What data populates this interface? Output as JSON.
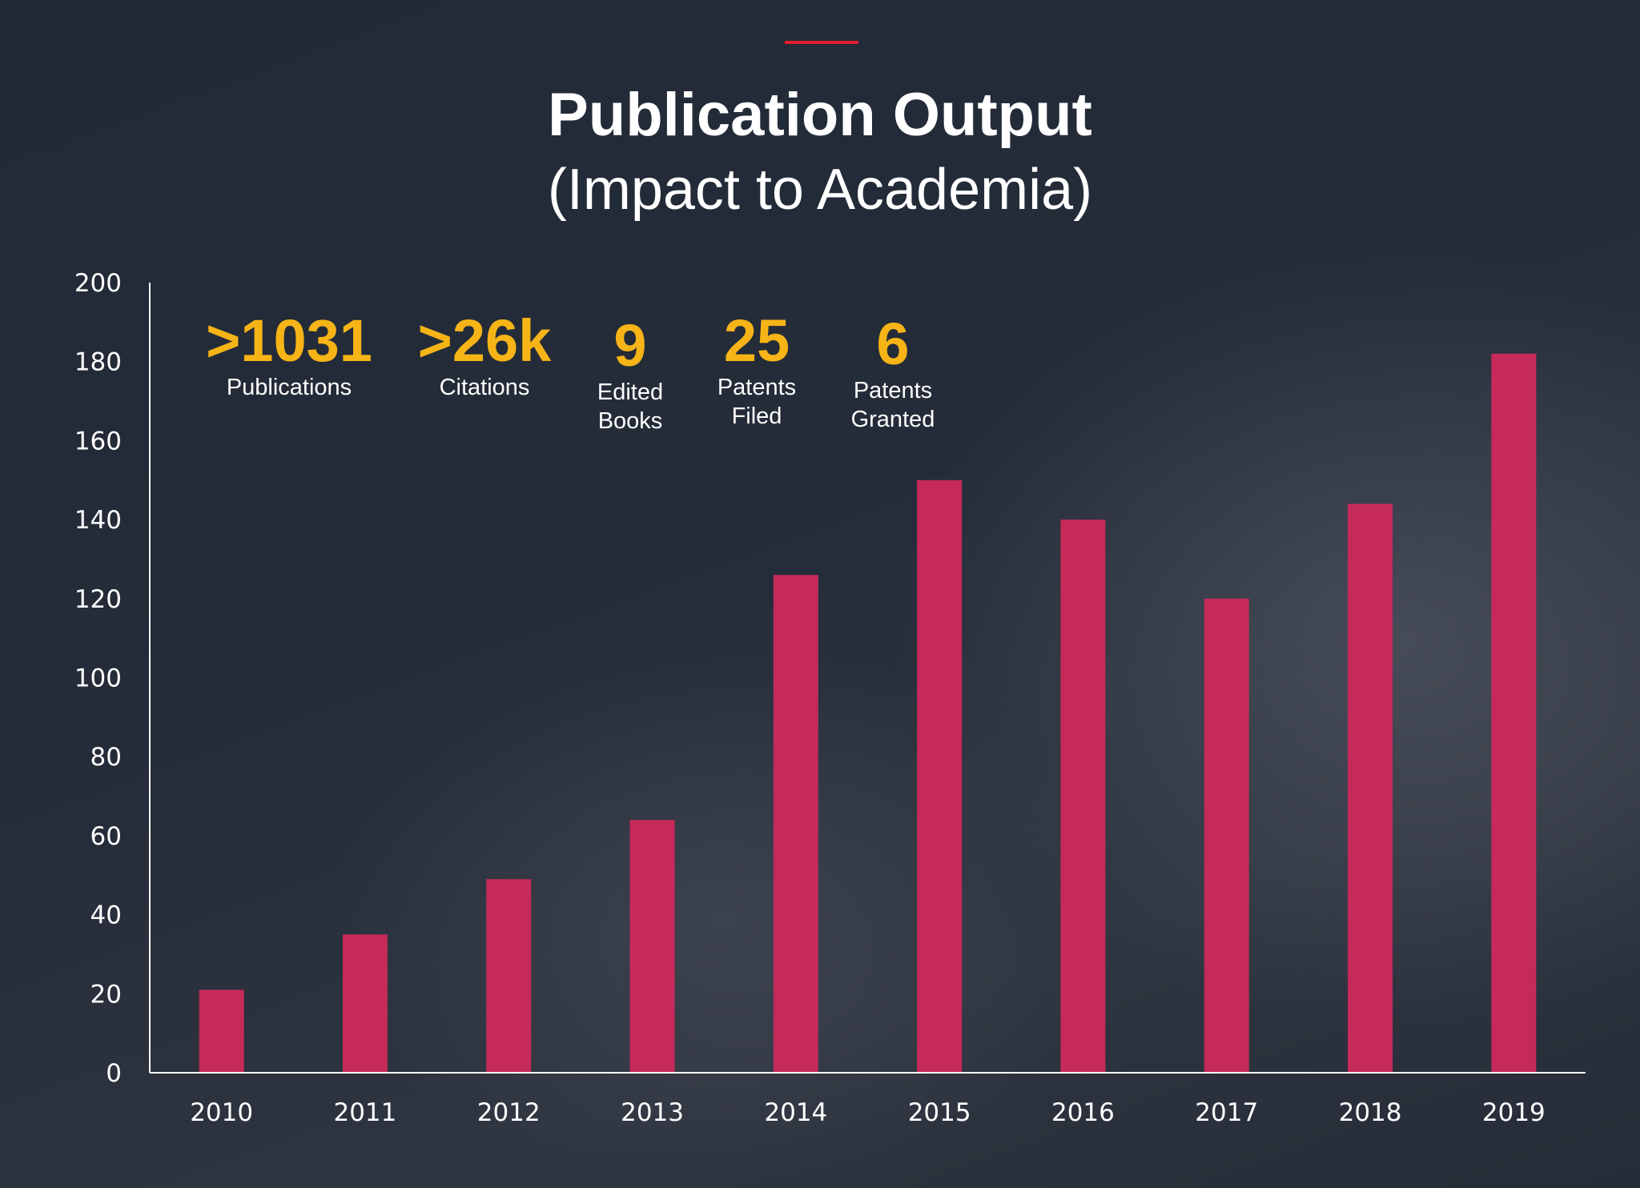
{
  "header": {
    "title": "Publication Output",
    "subtitle": "(Impact to Academia)"
  },
  "stats": [
    {
      "value": ">1031",
      "label": "Publications"
    },
    {
      "value": ">26k",
      "label": "Citations"
    },
    {
      "value": "9",
      "label": "Edited\nBooks"
    },
    {
      "value": "25",
      "label": "Patents\nFiled"
    },
    {
      "value": "6",
      "label": "Patents\nGranted"
    }
  ],
  "colors": {
    "bar": "#c52a5a",
    "accent": "#e01e2b",
    "stat_value": "#f6b417",
    "axis": "#ffffff"
  },
  "chart_data": {
    "type": "bar",
    "title": "Publication Output",
    "subtitle": "(Impact to Academia)",
    "categories": [
      "2010",
      "2011",
      "2012",
      "2013",
      "2014",
      "2015",
      "2016",
      "2017",
      "2018",
      "2019"
    ],
    "values": [
      21,
      35,
      49,
      64,
      126,
      150,
      140,
      120,
      144,
      182
    ],
    "ylim": [
      0,
      200
    ],
    "yticks": [
      0,
      20,
      40,
      60,
      80,
      100,
      120,
      140,
      160,
      180,
      200
    ],
    "xlabel": "",
    "ylabel": "",
    "grid": false,
    "legend": "none"
  }
}
